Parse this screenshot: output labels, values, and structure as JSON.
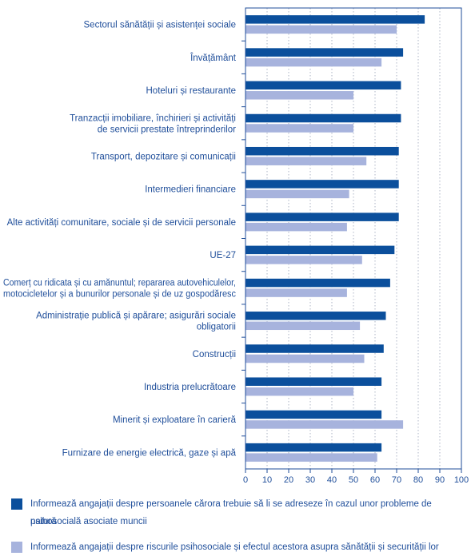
{
  "chart_data": {
    "type": "bar",
    "orientation": "horizontal",
    "categories": [
      "Sectorul sănătății și asistenței sociale",
      "Învățământ",
      "Hoteluri și restaurante",
      "Tranzacții imobiliare, închirieri și activități de servicii prestate întreprinderilor",
      "Transport, depozitare și comunicații",
      "Intermedieri financiare",
      "Alte activități comunitare, sociale și de servicii personale",
      "UE-27",
      "Comerț cu ridicata și cu amănuntul; repararea autovehiculelor, motocicletelor și a bunurilor personale și de uz gospodăresc",
      "Administrație publică și apărare; asigurări sociale obligatorii",
      "Construcții",
      "Industria prelucrătoare",
      "Minerit și exploatare în carieră",
      "Furnizare de energie electrică, gaze și apă"
    ],
    "category_lines": [
      [
        "Sectorul sănătății și asistenței sociale"
      ],
      [
        "Învățământ"
      ],
      [
        "Hoteluri și restaurante"
      ],
      [
        "Tranzacții imobiliare, închirieri și activități",
        "de servicii prestate întreprinderilor"
      ],
      [
        "Transport, depozitare și comunicații"
      ],
      [
        "Intermedieri financiare"
      ],
      [
        "Alte activități comunitare, sociale și de servicii personale"
      ],
      [
        "UE-27"
      ],
      [
        "Comerț cu ridicata și cu amănuntul; repararea autovehiculelor,",
        "motocicletelor și a bunurilor personale și de uz gospodăresc"
      ],
      [
        "Administrație publică și apărare; asigurări sociale",
        "obligatorii"
      ],
      [
        "Construcții"
      ],
      [
        "Industria prelucrătoare"
      ],
      [
        "Minerit și exploatare în carieră"
      ],
      [
        "Furnizare de energie electrică, gaze și apă"
      ]
    ],
    "series": [
      {
        "name": "Informează angajații despre persoanele cărora trebuie să li se adreseze în cazul unor probleme de natură psihosocială asociate muncii",
        "color": "#0b4f9c",
        "values": [
          83,
          73,
          72,
          72,
          71,
          71,
          71,
          69,
          67,
          65,
          64,
          63,
          63,
          63
        ]
      },
      {
        "name": "Informează angajații despre riscurile psihosociale și efectul acestora asupra sănătății și securității lor",
        "color": "#a7b3dd",
        "values": [
          70,
          63,
          50,
          50,
          56,
          48,
          47,
          54,
          47,
          53,
          55,
          50,
          73,
          61
        ]
      }
    ],
    "xlim": [
      0,
      100
    ],
    "xticks": [
      0,
      10,
      20,
      30,
      40,
      50,
      60,
      70,
      80,
      90,
      100
    ],
    "grid": "vertical dotted",
    "legend_position": "bottom"
  },
  "legend": [
    "Informează angajații despre persoanele cărora trebuie să li se adreseze în cazul unor probleme de natură",
    "psihosocială asociate muncii",
    "Informează angajații despre riscurile psihosociale și efectul acestora asupra sănătății și securității lor"
  ]
}
